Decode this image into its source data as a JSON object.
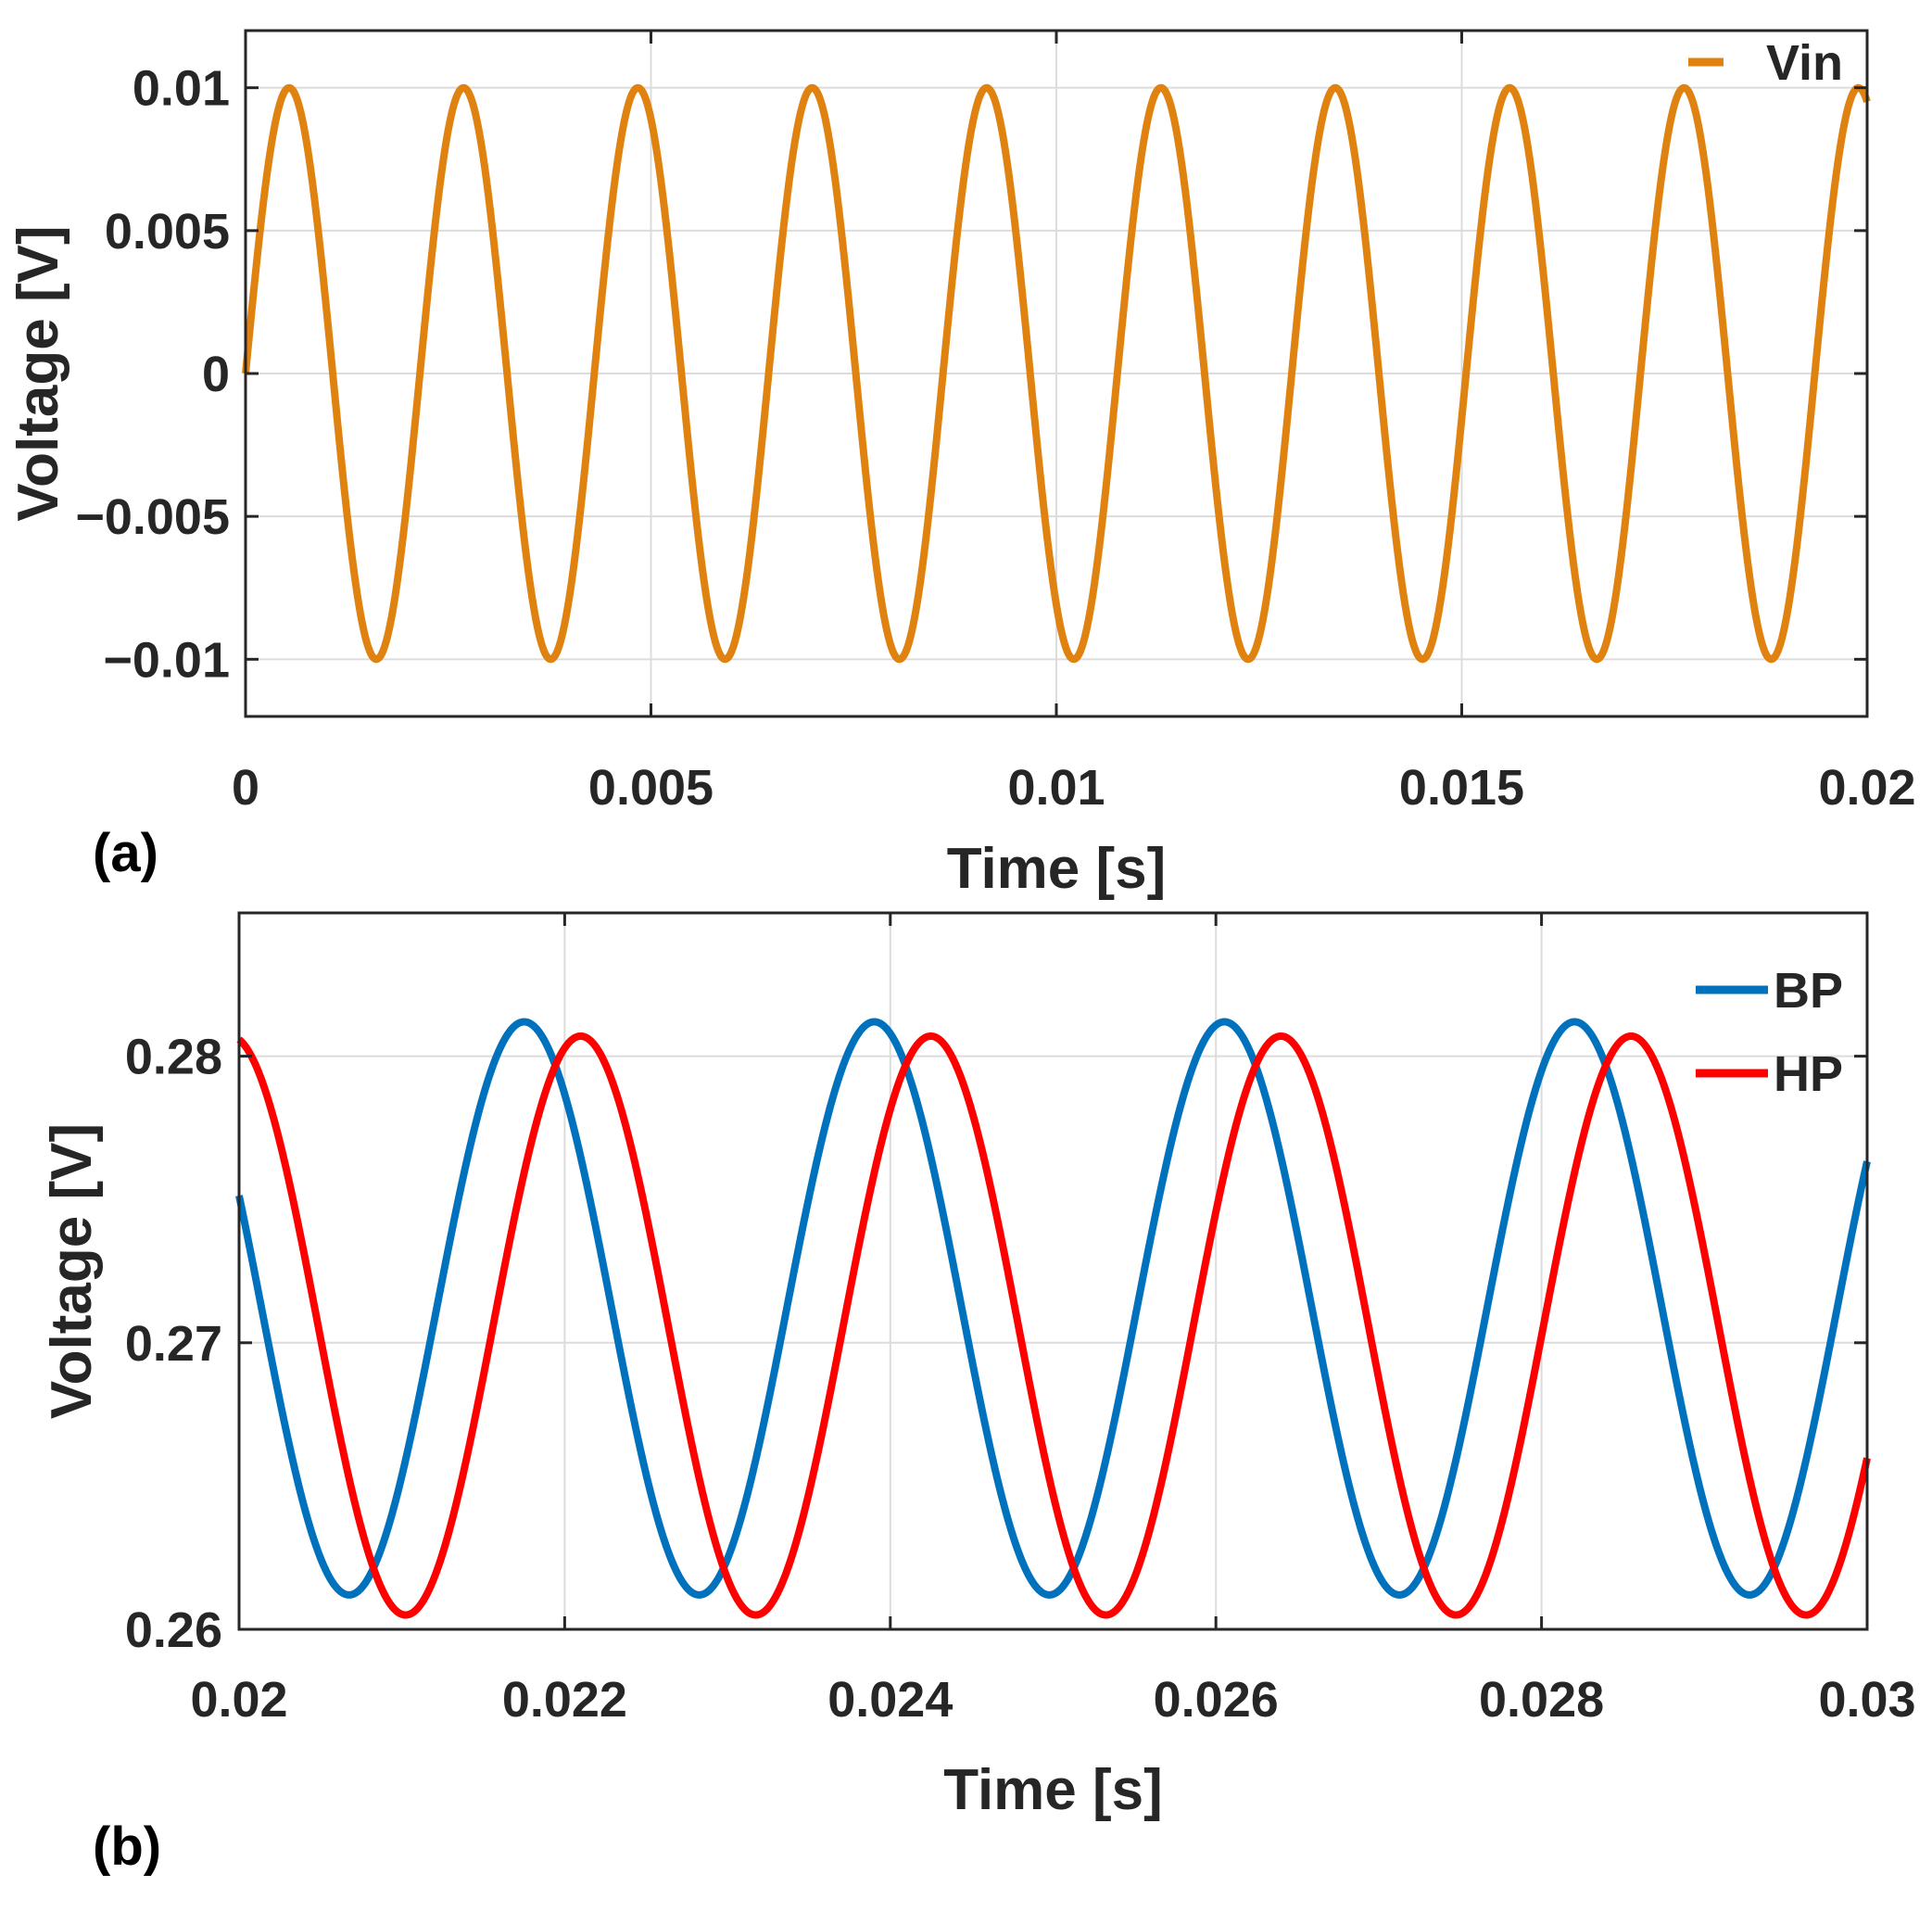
{
  "chart_data": [
    {
      "type": "line",
      "panel_label": "(a)",
      "xlabel": "Time [s]",
      "ylabel": "Voltage [V]",
      "xlim": [
        0,
        0.02
      ],
      "ylim": [
        -0.012,
        0.012
      ],
      "xticks": [
        0,
        0.005,
        0.01,
        0.015,
        0.02
      ],
      "xtick_labels": [
        "0",
        "0.005",
        "0.01",
        "0.015",
        "0.02"
      ],
      "yticks": [
        0.01,
        0.005,
        0,
        -0.005,
        -0.01
      ],
      "ytick_labels": [
        "0.01",
        "0.005",
        "0",
        "-0.005",
        "-0.01"
      ],
      "grid": true,
      "legend_position": "top-right",
      "series": [
        {
          "name": "Vin",
          "color": "#E0820F",
          "function": "sine",
          "amplitude": 0.01,
          "offset": 0,
          "frequency_hz": 465,
          "phase_rad": 0,
          "x_range": [
            0,
            0.02
          ]
        }
      ]
    },
    {
      "type": "line",
      "panel_label": "(b)",
      "xlabel": "Time [s]",
      "ylabel": "Voltage [V]",
      "xlim": [
        0.02,
        0.03
      ],
      "ylim": [
        0.26,
        0.285
      ],
      "xticks": [
        0.02,
        0.022,
        0.024,
        0.026,
        0.028,
        0.03
      ],
      "xtick_labels": [
        "0.02",
        "0.022",
        "0.024",
        "0.026",
        "0.028",
        "0.03"
      ],
      "yticks": [
        0.28,
        0.27,
        0.26
      ],
      "ytick_labels": [
        "0.28",
        "0.27",
        "0.26"
      ],
      "grid": true,
      "legend_position": "top-right",
      "series": [
        {
          "name": "BP",
          "color": "#0072BD",
          "function": "sine",
          "amplitude": 0.01,
          "offset": 0.2712,
          "frequency_hz": 465,
          "phase_rad": 0.8525,
          "x_range": [
            0.02,
            0.03
          ]
        },
        {
          "name": "HP",
          "color": "#FF0000",
          "function": "sine",
          "amplitude": 0.0101,
          "offset": 0.2706,
          "frequency_hz": 465,
          "phase_rad": -0.1615,
          "x_range": [
            0.02,
            0.03
          ]
        }
      ]
    }
  ]
}
